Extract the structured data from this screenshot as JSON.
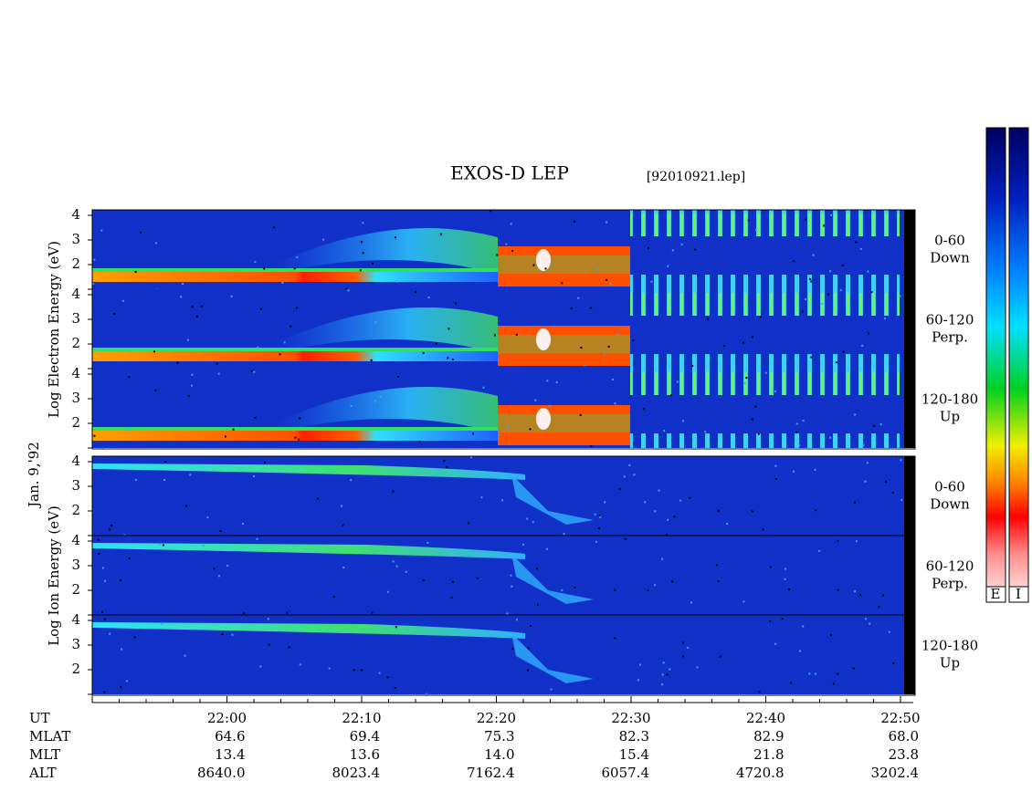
{
  "title": "EXOS-D LEP",
  "file": "[92010921.lep]",
  "date": "Jan. 9,'92",
  "electron": {
    "ylabel": "Log Electron Energy (eV)",
    "panels": [
      {
        "pitch": "0-60",
        "dir": "Down"
      },
      {
        "pitch": "60-120",
        "dir": "Perp."
      },
      {
        "pitch": "120-180",
        "dir": "Up"
      }
    ]
  },
  "ion": {
    "ylabel": "Log Ion Energy (eV)",
    "panels": [
      {
        "pitch": "0-60",
        "dir": "Down"
      },
      {
        "pitch": "60-120",
        "dir": "Perp."
      },
      {
        "pitch": "120-180",
        "dir": "Up"
      }
    ]
  },
  "energy_ticks": [
    "4",
    "3",
    "2"
  ],
  "time_labels": [
    "22:00",
    "22:10",
    "22:20",
    "22:30",
    "22:40",
    "22:50"
  ],
  "rows": [
    {
      "label": "UT",
      "values": []
    },
    {
      "label": "MLAT",
      "values": [
        "64.6",
        "69.4",
        "75.3",
        "82.3",
        "82.9",
        "68.0"
      ]
    },
    {
      "label": "MLT",
      "values": [
        "13.4",
        "13.6",
        "14.0",
        "15.4",
        "21.8",
        "23.8"
      ]
    },
    {
      "label": "ALT",
      "values": [
        "8640.0",
        "8023.4",
        "7162.4",
        "6057.4",
        "4720.8",
        "3202.4"
      ]
    }
  ],
  "colorbar_labels": [
    "E",
    "I"
  ]
}
